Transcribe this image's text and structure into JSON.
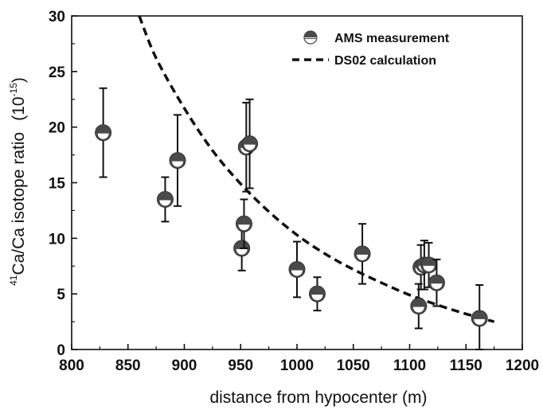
{
  "chart_data": {
    "type": "scatter",
    "xlabel": "distance from hypocenter (m)",
    "ylabel": "Ca/Ca isotope ratio",
    "ylabel_superscript": "41",
    "yunit_base": "(10",
    "yunit_exp": "-15",
    "yunit_close": ")",
    "xlim": [
      800,
      1200
    ],
    "ylim": [
      0,
      30
    ],
    "xticks": [
      800,
      850,
      900,
      950,
      1000,
      1050,
      1100,
      1150,
      1200
    ],
    "yticks": [
      0,
      5,
      10,
      15,
      20,
      25,
      30
    ],
    "grid": false,
    "legend_position": "top-right",
    "series": [
      {
        "name": "AMS measurement",
        "marker": "half-filled-circle",
        "color": "#444444",
        "points": [
          {
            "x": 828,
            "y": 19.5,
            "err": 4.0
          },
          {
            "x": 883,
            "y": 13.5,
            "err": 2.0
          },
          {
            "x": 894,
            "y": 17.0,
            "err": 4.1
          },
          {
            "x": 951,
            "y": 9.1,
            "err": 2.0
          },
          {
            "x": 953,
            "y": 11.3,
            "err": 2.2
          },
          {
            "x": 955,
            "y": 18.2,
            "err": 4.0
          },
          {
            "x": 958,
            "y": 18.5,
            "err": 4.0
          },
          {
            "x": 1000,
            "y": 7.2,
            "err": 2.5
          },
          {
            "x": 1018,
            "y": 5.0,
            "err": 1.5
          },
          {
            "x": 1058,
            "y": 8.6,
            "err": 2.7
          },
          {
            "x": 1108,
            "y": 3.9,
            "err": 2.0
          },
          {
            "x": 1110,
            "y": 7.4,
            "err": 2.0
          },
          {
            "x": 1113,
            "y": 7.6,
            "err": 2.2
          },
          {
            "x": 1117,
            "y": 7.6,
            "err": 2.0
          },
          {
            "x": 1124,
            "y": 6.0,
            "err": 2.1
          },
          {
            "x": 1162,
            "y": 2.8,
            "err": 3.0
          }
        ]
      },
      {
        "name": "DS02 calculation",
        "style": "dashed",
        "color": "#111111",
        "x": [
          860,
          875,
          900,
          925,
          950,
          975,
          1000,
          1025,
          1050,
          1075,
          1100,
          1125,
          1150,
          1175
        ],
        "y": [
          30.0,
          26.2,
          21.7,
          17.9,
          14.9,
          12.4,
          10.3,
          8.6,
          7.2,
          6.0,
          4.9,
          4.0,
          3.2,
          2.5
        ]
      }
    ]
  },
  "colors": {
    "marker_fill": "#4a4a4a",
    "marker_light": "#ffffff",
    "axis": "#111111"
  }
}
